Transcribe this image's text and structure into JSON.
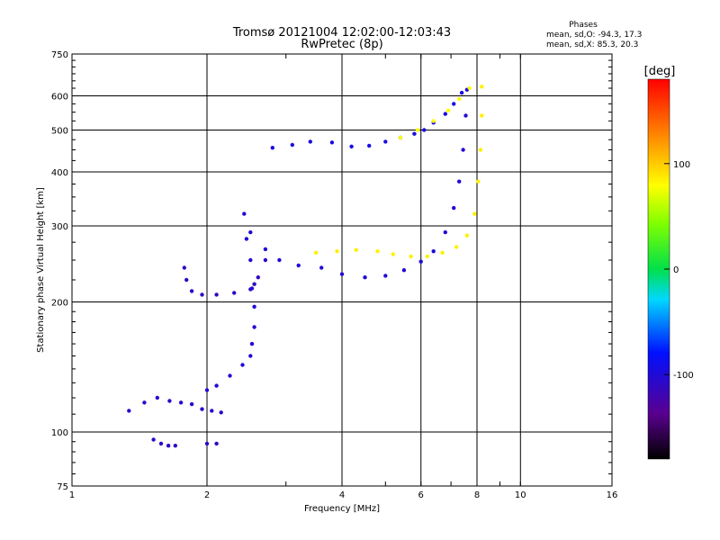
{
  "chart_data": {
    "type": "scatter",
    "title": "Tromsø 20121004 12:02:00-12:03:43",
    "subtitle": "RwPretec (8p)",
    "xlabel": "Frequency [MHz]",
    "ylabel": "Stationary phase Virtual Height [km]",
    "x_scale": "log",
    "y_scale": "log",
    "xlim": [
      1,
      16
    ],
    "ylim": [
      75,
      750
    ],
    "x_ticks": [
      1,
      2,
      4,
      6,
      8,
      10,
      16
    ],
    "x_tick_labels": [
      "1",
      "2",
      "4",
      "6",
      "8",
      "10",
      "16"
    ],
    "y_ticks": [
      75,
      100,
      200,
      300,
      400,
      500,
      600,
      750
    ],
    "y_tick_labels": [
      "75",
      "100",
      "200",
      "300",
      "400",
      "500",
      "600",
      "750"
    ],
    "grid": true,
    "phase_stats": {
      "heading": "Phases",
      "o_line": "mean, sd,O: -94.3, 17.3",
      "x_line": "mean, sd,X: 85.3, 20.3"
    },
    "colorbar": {
      "label": "[deg]",
      "min": -180,
      "max": 180,
      "ticks": [
        100,
        0,
        -100
      ],
      "tick_labels": [
        "100",
        "0",
        "-100"
      ]
    },
    "traces": [
      {
        "phase": -95,
        "points": [
          [
            2.8,
            455
          ],
          [
            3.1,
            462
          ],
          [
            3.4,
            470
          ],
          [
            3.8,
            468
          ],
          [
            4.2,
            458
          ],
          [
            4.6,
            460
          ],
          [
            5.0,
            470
          ],
          [
            5.4,
            480
          ],
          [
            5.8,
            490
          ],
          [
            6.1,
            500
          ],
          [
            6.4,
            520
          ],
          [
            6.8,
            545
          ],
          [
            7.1,
            575
          ],
          [
            7.4,
            610
          ]
        ]
      },
      {
        "phase": -100,
        "points": [
          [
            2.5,
            290
          ],
          [
            2.7,
            265
          ],
          [
            2.9,
            250
          ],
          [
            3.2,
            243
          ],
          [
            3.6,
            240
          ],
          [
            4.0,
            232
          ],
          [
            4.5,
            228
          ],
          [
            5.0,
            230
          ],
          [
            5.5,
            237
          ],
          [
            6.0,
            248
          ],
          [
            6.4,
            262
          ],
          [
            6.8,
            290
          ],
          [
            7.1,
            330
          ],
          [
            7.3,
            380
          ],
          [
            7.45,
            450
          ],
          [
            7.55,
            540
          ],
          [
            7.6,
            620
          ]
        ]
      },
      {
        "phase": 85,
        "points": [
          [
            3.5,
            260
          ],
          [
            3.9,
            262
          ],
          [
            4.3,
            264
          ],
          [
            4.8,
            262
          ],
          [
            5.2,
            258
          ],
          [
            5.7,
            255
          ],
          [
            6.2,
            255
          ],
          [
            6.7,
            260
          ],
          [
            7.2,
            268
          ],
          [
            7.6,
            285
          ],
          [
            7.9,
            320
          ],
          [
            8.05,
            380
          ],
          [
            8.15,
            450
          ],
          [
            8.2,
            540
          ],
          [
            8.2,
            630
          ]
        ]
      },
      {
        "phase": 80,
        "points": [
          [
            5.4,
            480
          ],
          [
            5.9,
            500
          ],
          [
            6.4,
            525
          ],
          [
            6.9,
            555
          ],
          [
            7.3,
            590
          ],
          [
            7.7,
            625
          ]
        ]
      },
      {
        "phase": -110,
        "points": [
          [
            1.78,
            240
          ],
          [
            1.8,
            225
          ],
          [
            1.85,
            212
          ],
          [
            1.95,
            208
          ],
          [
            2.1,
            208
          ],
          [
            2.3,
            210
          ],
          [
            2.5,
            214
          ],
          [
            2.55,
            220
          ],
          [
            2.6,
            228
          ],
          [
            2.7,
            250
          ]
        ]
      },
      {
        "phase": -100,
        "points": [
          [
            2.42,
            320
          ],
          [
            2.45,
            280
          ],
          [
            2.5,
            250
          ],
          [
            2.52,
            215
          ],
          [
            2.55,
            195
          ],
          [
            2.55,
            175
          ],
          [
            2.52,
            160
          ],
          [
            2.5,
            150
          ],
          [
            2.4,
            143
          ],
          [
            2.25,
            135
          ],
          [
            2.1,
            128
          ],
          [
            2.0,
            125
          ]
        ]
      },
      {
        "phase": -105,
        "points": [
          [
            1.34,
            112
          ],
          [
            1.45,
            117
          ],
          [
            1.55,
            120
          ],
          [
            1.65,
            118
          ],
          [
            1.75,
            117
          ],
          [
            1.85,
            116
          ],
          [
            1.95,
            113
          ],
          [
            2.05,
            112
          ],
          [
            2.15,
            111
          ]
        ]
      },
      {
        "phase": -110,
        "points": [
          [
            1.52,
            96
          ],
          [
            1.58,
            94
          ],
          [
            1.64,
            93
          ],
          [
            1.7,
            93
          ],
          [
            2.0,
            94
          ],
          [
            2.1,
            94
          ]
        ]
      }
    ]
  }
}
